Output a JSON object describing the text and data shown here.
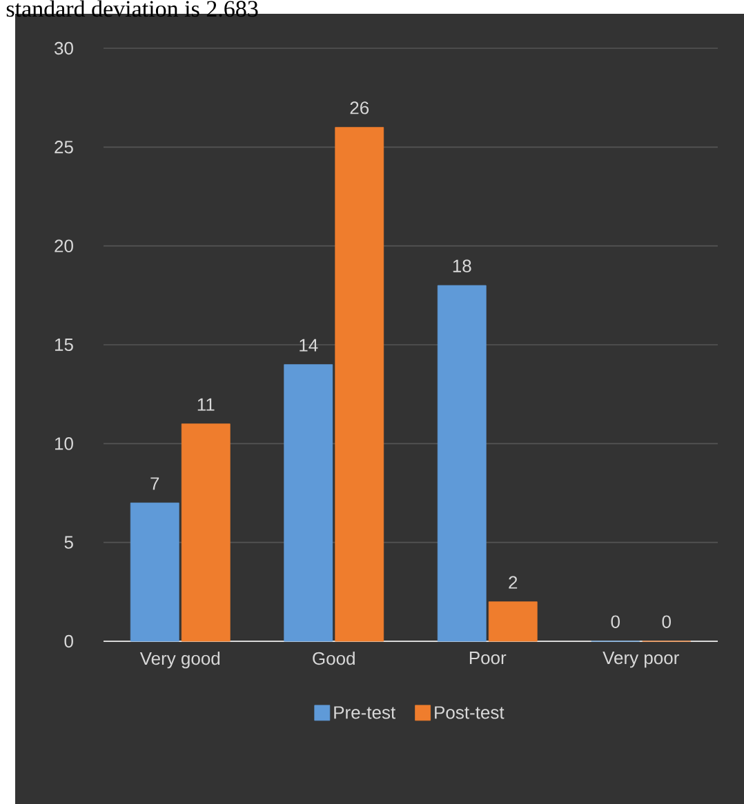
{
  "chart_data": {
    "type": "bar",
    "annotations": [
      "standard deviation is 2.683"
    ],
    "categories": [
      "Very good",
      "Good",
      "Poor",
      "Very poor"
    ],
    "series": [
      {
        "name": "Pre-test",
        "color": "#5f9ad8",
        "values": [
          7,
          14,
          18,
          0
        ]
      },
      {
        "name": "Post-test",
        "color": "#ef7d2d",
        "values": [
          11,
          26,
          2,
          0
        ]
      }
    ],
    "ylim": [
      0,
      30
    ],
    "yticks": [
      0,
      5,
      10,
      15,
      20,
      25,
      30
    ],
    "grid": "y",
    "legend": "bottom",
    "data_labels": true
  }
}
